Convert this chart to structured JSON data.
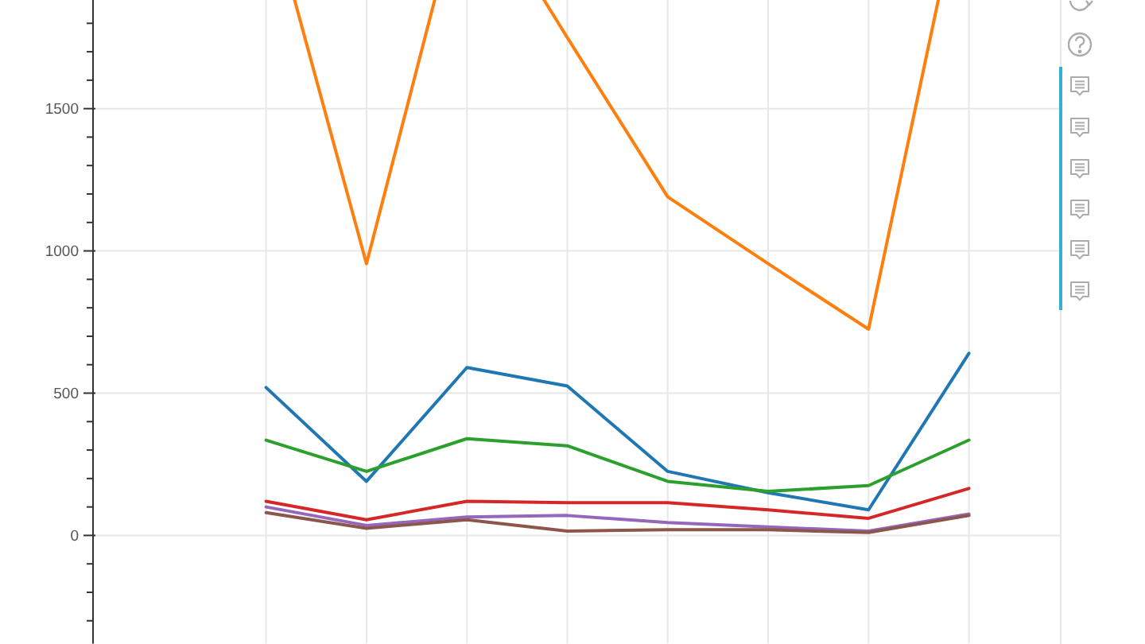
{
  "chart_data": {
    "type": "line",
    "categories": [
      null,
      null,
      null,
      null,
      null,
      null,
      null,
      null
    ],
    "series": [
      {
        "color": "#1f77b4",
        "values": [
          520,
          190,
          590,
          525,
          225,
          150,
          90,
          640
        ]
      },
      {
        "color": "#ff7f0e",
        "values": [
          2250,
          955,
          2320,
          1750,
          1190,
          955,
          725,
          2390
        ]
      },
      {
        "color": "#2ca02c",
        "values": [
          335,
          225,
          340,
          315,
          190,
          155,
          175,
          335
        ]
      },
      {
        "color": "#d62728",
        "values": [
          120,
          55,
          120,
          115,
          115,
          90,
          60,
          165
        ]
      },
      {
        "color": "#9467bd",
        "values": [
          100,
          35,
          65,
          70,
          45,
          30,
          15,
          75
        ]
      },
      {
        "color": "#8c564b",
        "values": [
          80,
          25,
          55,
          15,
          20,
          20,
          10,
          70
        ]
      }
    ],
    "ylim": [
      -380,
      2400
    ],
    "yticks": [
      0,
      500,
      1000,
      1500
    ],
    "grid": true,
    "tick_labels": "y"
  }
}
